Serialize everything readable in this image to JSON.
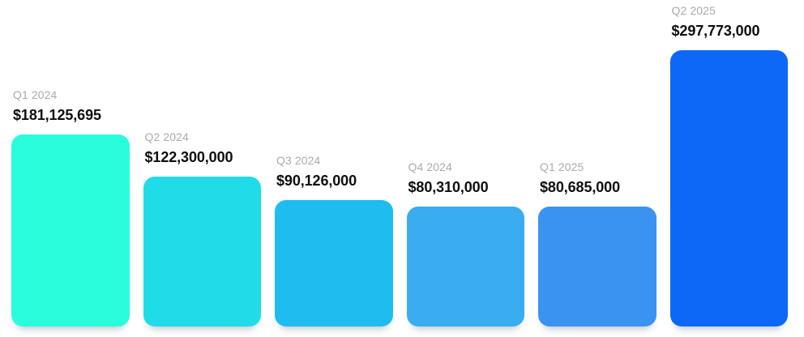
{
  "page": {
    "background": "#FFFFFF"
  },
  "chart_data": {
    "type": "bar",
    "title": "",
    "xlabel": "",
    "ylabel": "",
    "grid": false,
    "legend": false,
    "orientation": "vertical",
    "categories": [
      "Q1 2024",
      "Q2 2024",
      "Q3 2024",
      "Q4 2024",
      "Q1 2025",
      "Q2 2025"
    ],
    "values": [
      181125695,
      122300000,
      90126000,
      80310000,
      80685000,
      297773000
    ],
    "value_labels": [
      "$181,125,695",
      "$122,300,000",
      "$90,126,000",
      "$80,310,000",
      "$80,685,000",
      "$297,773,000"
    ],
    "bar_colors": [
      "#29FEDC",
      "#20DCE8",
      "#1FBCEF",
      "#3AACF2",
      "#3A93F0",
      "#0D67F7"
    ],
    "category_label_color": "#A6ABB0",
    "value_label_color": "#0D0E10",
    "annotations": "each bar labeled above with quarter name (gray) and dollar value (black)"
  }
}
